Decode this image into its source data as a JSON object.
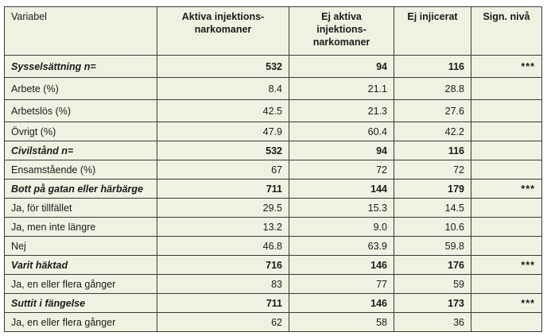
{
  "header": {
    "col1": "Variabel",
    "col2": "Aktiva injektions-narkomaner",
    "col3": "Ej aktiva injektions-narkomaner",
    "col4": "Ej injicerat",
    "col5": "Sign. nivå"
  },
  "rows": [
    {
      "label": "Sysselsättning n=",
      "v1": "532",
      "v2": "94",
      "v3": "116",
      "sig": "***"
    },
    {
      "label": "Arbete (%)",
      "v1": "8.4",
      "v2": "21.1",
      "v3": "28.8",
      "sig": ""
    },
    {
      "label": "Arbetslös (%)",
      "v1": "42.5",
      "v2": "21.3",
      "v3": "27.6",
      "sig": ""
    },
    {
      "label": "Övrigt (%)",
      "v1": "47.9",
      "v2": "60.4",
      "v3": "42.2",
      "sig": ""
    },
    {
      "label": "Civilstånd n=",
      "v1": "532",
      "v2": "94",
      "v3": "116",
      "sig": ""
    },
    {
      "label": "Ensamstående (%)",
      "v1": "67",
      "v2": "72",
      "v3": "72",
      "sig": ""
    },
    {
      "label": "Bott på gatan eller härbärge",
      "v1": "711",
      "v2": "144",
      "v3": "179",
      "sig": "***"
    },
    {
      "label": "Ja, för tillfället",
      "v1": "29.5",
      "v2": "15.3",
      "v3": "14.5",
      "sig": ""
    },
    {
      "label": "Ja, men inte längre",
      "v1": "13.2",
      "v2": "9.0",
      "v3": "10.6",
      "sig": ""
    },
    {
      "label": "Nej",
      "v1": "46.8",
      "v2": "63.9",
      "v3": "59.8",
      "sig": ""
    },
    {
      "label": "Varit häktad",
      "v1": "716",
      "v2": "146",
      "v3": "176",
      "sig": "***"
    },
    {
      "label": "Ja, en eller flera gånger",
      "v1": "83",
      "v2": "77",
      "v3": "59",
      "sig": ""
    },
    {
      "label": "Suttit i fängelse",
      "v1": "711",
      "v2": "146",
      "v3": "173",
      "sig": "***"
    },
    {
      "label": "Ja, en eller flera gånger",
      "v1": "62",
      "v2": "58",
      "v3": "36",
      "sig": ""
    }
  ],
  "style": {
    "table_background": "#eef3e1",
    "border_color": "#3a3a3a"
  }
}
